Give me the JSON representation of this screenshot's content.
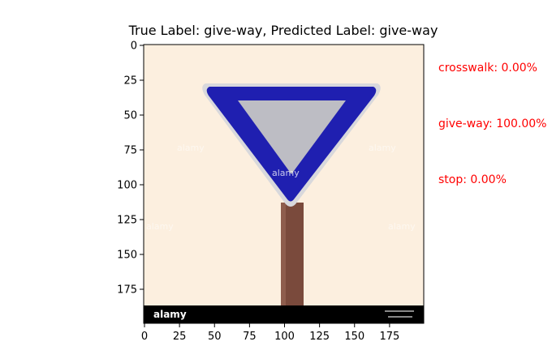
{
  "figure": {
    "title": "True Label: give-way, Predicted Label: give-way",
    "true_label": "give-way",
    "predicted_label": "give-way"
  },
  "image_axes": {
    "x_ticks": [
      "0",
      "25",
      "50",
      "75",
      "100",
      "125",
      "150",
      "175"
    ],
    "y_ticks": [
      "0",
      "25",
      "50",
      "75",
      "100",
      "125",
      "150",
      "175"
    ],
    "xlim": [
      0,
      200
    ],
    "ylim": [
      200,
      0
    ]
  },
  "scores": [
    {
      "label": "crosswalk: 0.00%"
    },
    {
      "label": "give-way: 100.00%"
    },
    {
      "label": "stop: 0.00%"
    }
  ],
  "photo": {
    "watermark_text": "alamy",
    "colors": {
      "background": "#fbebd8",
      "sign_border": "#1f1fb0",
      "sign_inner": "#bdbdc4",
      "sign_rim": "#d8d8dc",
      "pole": "#7a4a3c",
      "footer_bar": "#000000"
    }
  }
}
